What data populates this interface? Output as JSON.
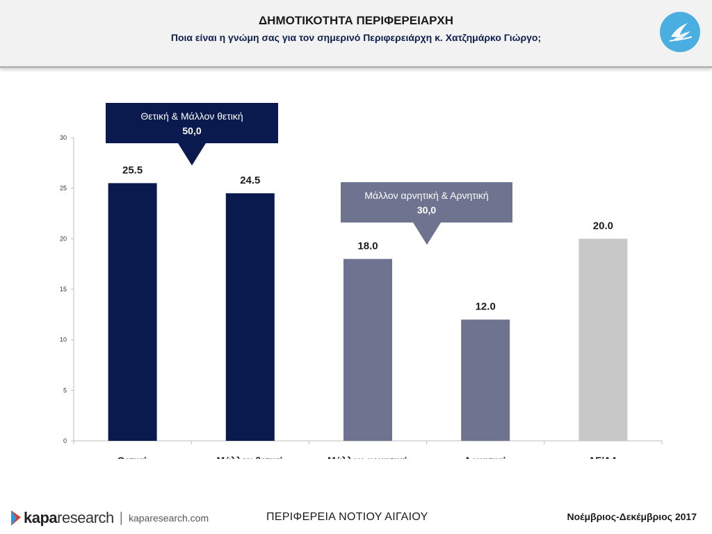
{
  "header": {
    "title": "ΔΗΜΟΤΙΚΟΤΗΤΑ ΠΕΡΙΦΕΡΕΙΑΡΧΗ",
    "subtitle": "Ποια είναι η γνώμη σας για τον σημερινό Περιφερειάρχη κ. Χατζημάρκο Γιώργο;",
    "logo_icon": "region-emblem-icon"
  },
  "chart_data": {
    "type": "bar",
    "categories": [
      "Θετική",
      "Μάλλον θετική",
      "Μάλλον αρνητική",
      "Αρνητική",
      "ΔΓ/ΔΑ"
    ],
    "values": [
      25.5,
      24.5,
      18.0,
      12.0,
      20.0
    ],
    "value_labels": [
      "25.5",
      "24.5",
      "18.0",
      "12.0",
      "20.0"
    ],
    "bar_colors": [
      "#0a1a4f",
      "#0a1a4f",
      "#6e7490",
      "#6e7490",
      "#c8c8c8"
    ],
    "ylim": [
      0,
      30
    ],
    "yticks": [
      0,
      5,
      10,
      15,
      20,
      25,
      30
    ],
    "grid": false,
    "callouts": [
      {
        "label": "Θετική & Μάλλον θετική",
        "value": "50,0",
        "color": "#0a1a4f"
      },
      {
        "label": "Μάλλον αρνητική & Αρνητική",
        "value": "30,0",
        "color": "#6e7490"
      }
    ]
  },
  "footer": {
    "brand_prefix": "kapa",
    "brand_suffix": "research",
    "brand_url": "kaparesearch.com",
    "region": "ΠΕΡΙΦΕΡΕΙΑ ΝΟΤΙΟΥ ΑΙΓΑΙΟΥ",
    "period": "Νοέμβριος-Δεκέμβριος 2017"
  }
}
